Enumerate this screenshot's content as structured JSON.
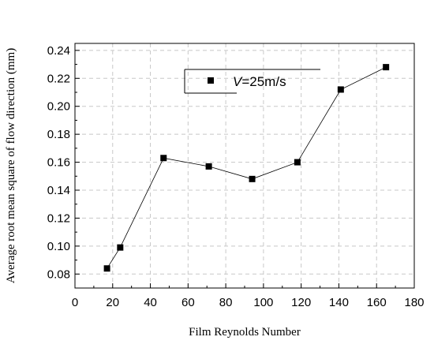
{
  "chart_data": {
    "type": "line",
    "title": "",
    "xlabel": "Film Reynolds Number",
    "ylabel": "Average root mean square of flow direction (mm)",
    "xlim": [
      0,
      180
    ],
    "ylim": [
      0.07,
      0.245
    ],
    "xticks": [
      0,
      20,
      40,
      60,
      80,
      100,
      120,
      140,
      160,
      180
    ],
    "yticks": [
      0.08,
      0.1,
      0.12,
      0.14,
      0.16,
      0.18,
      0.2,
      0.22,
      0.24
    ],
    "ytick_labels": [
      "0.08",
      "0.10",
      "0.12",
      "0.14",
      "0.16",
      "0.18",
      "0.20",
      "0.22",
      "0.24"
    ],
    "grid": true,
    "legend_position": "top-center",
    "series": [
      {
        "name_prefix": "V",
        "name_suffix": "=25m/s",
        "marker": "square",
        "color": "#000000",
        "x": [
          17,
          24,
          47,
          71,
          94,
          118,
          141,
          165
        ],
        "y": [
          0.084,
          0.099,
          0.163,
          0.157,
          0.148,
          0.16,
          0.212,
          0.228
        ]
      }
    ]
  }
}
